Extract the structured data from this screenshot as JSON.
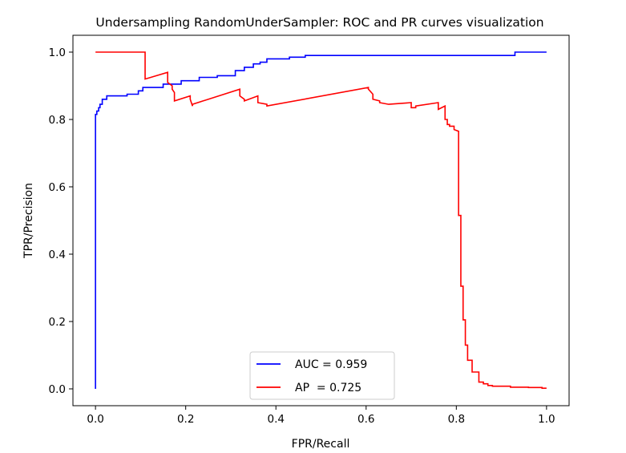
{
  "chart_data": {
    "type": "line",
    "title": "Undersampling RandomUnderSampler: ROC and PR curves visualization",
    "xlabel": "FPR/Recall",
    "ylabel": "TPR/Precision",
    "xlim": [
      -0.05,
      1.05
    ],
    "ylim": [
      -0.05,
      1.05
    ],
    "xticks": [
      0.0,
      0.2,
      0.4,
      0.6,
      0.8,
      1.0
    ],
    "xtick_labels": [
      "0.0",
      "0.2",
      "0.4",
      "0.6",
      "0.8",
      "1.0"
    ],
    "yticks": [
      0.0,
      0.2,
      0.4,
      0.6,
      0.8,
      1.0
    ],
    "ytick_labels": [
      "0.0",
      "0.2",
      "0.4",
      "0.6",
      "0.8",
      "1.0"
    ],
    "grid": false,
    "legend_position": "bottom-center",
    "series": [
      {
        "name": "AUC = 0.959",
        "color": "#0000ff",
        "x": [
          0.0,
          0.0,
          0.0,
          0.003,
          0.003,
          0.007,
          0.007,
          0.01,
          0.01,
          0.015,
          0.015,
          0.025,
          0.025,
          0.07,
          0.07,
          0.095,
          0.095,
          0.105,
          0.105,
          0.15,
          0.15,
          0.19,
          0.19,
          0.23,
          0.23,
          0.27,
          0.27,
          0.31,
          0.31,
          0.33,
          0.33,
          0.35,
          0.35,
          0.365,
          0.365,
          0.38,
          0.38,
          0.43,
          0.43,
          0.465,
          0.465,
          0.93,
          0.93,
          1.0
        ],
        "y": [
          0.0,
          0.8,
          0.815,
          0.815,
          0.825,
          0.825,
          0.835,
          0.835,
          0.845,
          0.845,
          0.86,
          0.86,
          0.87,
          0.87,
          0.875,
          0.875,
          0.885,
          0.885,
          0.895,
          0.895,
          0.905,
          0.905,
          0.915,
          0.915,
          0.925,
          0.925,
          0.93,
          0.93,
          0.945,
          0.945,
          0.955,
          0.955,
          0.965,
          0.965,
          0.97,
          0.97,
          0.98,
          0.98,
          0.985,
          0.985,
          0.99,
          0.99,
          1.0,
          1.0
        ]
      },
      {
        "name": "AP  = 0.725",
        "color": "#ff0000",
        "x": [
          0.0,
          0.11,
          0.11,
          0.16,
          0.16,
          0.17,
          0.17,
          0.175,
          0.175,
          0.21,
          0.21,
          0.215,
          0.215,
          0.32,
          0.32,
          0.33,
          0.33,
          0.36,
          0.36,
          0.38,
          0.38,
          0.605,
          0.605,
          0.615,
          0.615,
          0.63,
          0.63,
          0.65,
          0.65,
          0.7,
          0.7,
          0.71,
          0.71,
          0.76,
          0.76,
          0.775,
          0.775,
          0.78,
          0.78,
          0.785,
          0.785,
          0.795,
          0.795,
          0.805,
          0.805,
          0.81,
          0.81,
          0.815,
          0.815,
          0.82,
          0.82,
          0.825,
          0.825,
          0.835,
          0.835,
          0.85,
          0.85,
          0.86,
          0.86,
          0.87,
          0.87,
          0.88,
          0.88,
          0.92,
          0.92,
          0.96,
          0.96,
          0.99,
          0.99,
          1.0
        ],
        "y": [
          1.0,
          1.0,
          0.92,
          0.94,
          0.91,
          0.9,
          0.89,
          0.88,
          0.855,
          0.87,
          0.86,
          0.84,
          0.845,
          0.89,
          0.87,
          0.86,
          0.855,
          0.87,
          0.85,
          0.845,
          0.84,
          0.895,
          0.89,
          0.875,
          0.86,
          0.855,
          0.85,
          0.845,
          0.845,
          0.85,
          0.835,
          0.835,
          0.84,
          0.85,
          0.83,
          0.84,
          0.8,
          0.8,
          0.785,
          0.785,
          0.78,
          0.78,
          0.77,
          0.765,
          0.515,
          0.515,
          0.305,
          0.305,
          0.205,
          0.205,
          0.13,
          0.13,
          0.085,
          0.085,
          0.05,
          0.05,
          0.02,
          0.02,
          0.015,
          0.015,
          0.01,
          0.01,
          0.008,
          0.008,
          0.005,
          0.005,
          0.004,
          0.004,
          0.002,
          0.002
        ]
      }
    ]
  }
}
